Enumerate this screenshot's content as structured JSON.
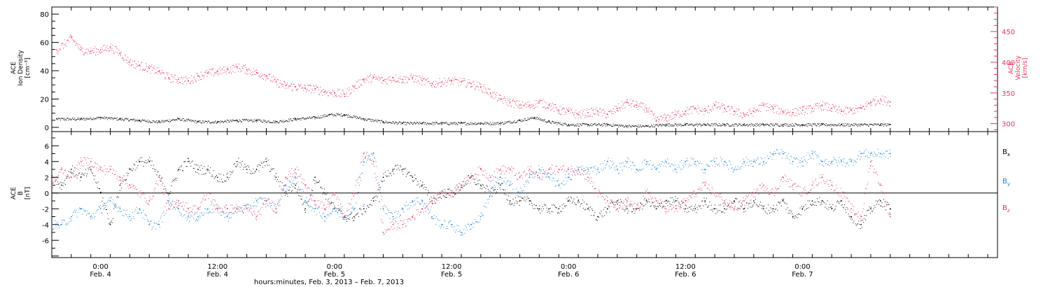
{
  "colors": {
    "black": "#000000",
    "pink": "#e8365e",
    "blue": "#1a7fd4"
  },
  "xaxis": {
    "title": "hours:minutes, Feb.  3, 2013 – Feb.  7, 2013",
    "range_hours": [
      -5,
      92
    ],
    "data_end_hours": 81,
    "ticks": [
      {
        "hours": 0,
        "time": "0:00",
        "day": "Feb. 4"
      },
      {
        "hours": 12,
        "time": "12:00",
        "day": "Feb. 4"
      },
      {
        "hours": 24,
        "time": "0:00",
        "day": "Feb. 5"
      },
      {
        "hours": 36,
        "time": "12:00",
        "day": "Feb. 5"
      },
      {
        "hours": 48,
        "time": "0:00",
        "day": "Feb. 6"
      },
      {
        "hours": 60,
        "time": "12:00",
        "day": "Feb. 6"
      },
      {
        "hours": 72,
        "time": "0:00",
        "day": "Feb. 7"
      }
    ]
  },
  "chart_data": [
    {
      "type": "scatter",
      "panel": "top",
      "left_axis": {
        "label_lines": [
          "ACE",
          "Ion Density",
          "[cm⁻³]"
        ],
        "ylim": [
          -3,
          85
        ],
        "ticks": [
          0,
          20,
          40,
          60,
          80
        ]
      },
      "right_axis": {
        "label_lines": [
          "ACE",
          "Velocity",
          "[km/s]"
        ],
        "ylim": [
          287,
          490
        ],
        "ticks": [
          300,
          350,
          400,
          450
        ],
        "color": "#e8365e"
      },
      "series": [
        {
          "color": "#000000",
          "axis": "left",
          "x": [
            -4.5,
            -2,
            0,
            2,
            4,
            6,
            8,
            10,
            12,
            14,
            16,
            18,
            20,
            22,
            23.5,
            25,
            27,
            29,
            31,
            33,
            35,
            37,
            39,
            41,
            43,
            44.5,
            46,
            48,
            50,
            52,
            54,
            56,
            58,
            60,
            62,
            64,
            66,
            68,
            70,
            72,
            74,
            76,
            78,
            80,
            81
          ],
          "y": [
            6,
            6,
            7,
            6,
            5,
            4,
            6,
            4,
            4,
            5,
            5,
            4,
            6,
            7,
            9,
            9,
            6,
            4,
            3,
            3,
            3,
            3,
            3,
            3,
            5,
            7,
            4,
            2,
            2,
            2,
            1,
            1,
            2,
            2,
            2,
            2,
            2,
            2,
            2,
            2,
            2,
            2,
            2,
            2,
            2
          ]
        },
        {
          "color": "#e8365e",
          "axis": "right",
          "x": [
            -4.5,
            -3,
            -2,
            -1,
            0,
            1,
            2,
            3,
            4,
            5,
            6,
            7,
            8,
            9,
            10,
            11,
            12,
            13,
            14,
            15,
            16,
            17,
            18,
            19,
            20,
            21,
            22,
            23,
            24,
            25,
            26,
            27,
            28,
            29,
            30,
            31,
            32,
            33,
            34,
            35,
            36,
            37,
            38,
            39,
            40,
            41,
            42,
            43,
            44,
            45,
            46,
            47,
            48,
            49,
            50,
            51,
            52,
            53,
            54,
            55,
            56,
            57,
            58,
            59,
            60,
            61,
            62,
            63,
            64,
            65,
            66,
            67,
            68,
            69,
            70,
            71,
            72,
            73,
            74,
            75,
            76,
            77,
            78,
            79,
            80,
            81
          ],
          "y": [
            420,
            440,
            420,
            418,
            420,
            425,
            415,
            400,
            395,
            390,
            385,
            375,
            372,
            370,
            378,
            382,
            385,
            388,
            392,
            388,
            383,
            378,
            368,
            362,
            360,
            358,
            357,
            352,
            350,
            348,
            360,
            372,
            375,
            370,
            375,
            372,
            375,
            370,
            365,
            368,
            370,
            368,
            365,
            360,
            350,
            340,
            335,
            330,
            330,
            335,
            330,
            322,
            320,
            315,
            318,
            320,
            315,
            325,
            335,
            330,
            325,
            305,
            310,
            315,
            320,
            325,
            320,
            330,
            325,
            320,
            315,
            320,
            330,
            325,
            320,
            318,
            322,
            325,
            330,
            325,
            320,
            322,
            325,
            335,
            340,
            335
          ]
        }
      ]
    },
    {
      "type": "scatter",
      "panel": "bottom",
      "left_axis": {
        "label_lines": [
          "ACE",
          "B",
          "[nT]"
        ],
        "ylim": [
          -8.2,
          7.8
        ],
        "ticks": [
          -6,
          -4,
          -2,
          0,
          2,
          4,
          6
        ]
      },
      "legend": [
        {
          "text": "B",
          "sub": "x",
          "color": "#000000"
        },
        {
          "text": "B",
          "sub": "y",
          "color": "#1a7fd4"
        },
        {
          "text": "B",
          "sub": "z",
          "color": "#e8365e"
        }
      ],
      "series": [
        {
          "name": "Bx",
          "color": "#000000",
          "x": [
            -5,
            -4,
            -3,
            -2,
            -1,
            0,
            1,
            2,
            3,
            4,
            5,
            6,
            7,
            8,
            9,
            10,
            11,
            12,
            13,
            14,
            15,
            16,
            17,
            18,
            19,
            20,
            21,
            22,
            23,
            24,
            25,
            26,
            27,
            28,
            29,
            30,
            31,
            32,
            33,
            34,
            35,
            36,
            37,
            38,
            39,
            40,
            41,
            42,
            43,
            44,
            45,
            46,
            47,
            48,
            49,
            50,
            51,
            52,
            53,
            54,
            55,
            56,
            57,
            58,
            59,
            60,
            61,
            62,
            63,
            64,
            65,
            66,
            67,
            68,
            69,
            70,
            71,
            72,
            73,
            74,
            75,
            76,
            77,
            78,
            79,
            80,
            81
          ],
          "y": [
            2,
            1,
            3,
            2,
            3,
            0,
            -4,
            1,
            3,
            4,
            4,
            2,
            0,
            3,
            4,
            3,
            3,
            2,
            2,
            4,
            3,
            3,
            4,
            2,
            0,
            1,
            -2,
            2,
            0,
            -2,
            -3,
            -3,
            -2,
            -1,
            2,
            3,
            3,
            2,
            1,
            -1,
            0,
            0,
            1,
            2,
            1,
            0,
            1,
            -1,
            -1,
            -1,
            -2,
            -2,
            -2,
            -1,
            -1,
            -2,
            -3,
            -2,
            -1,
            -2,
            -2,
            -1,
            -2,
            -1,
            -1,
            -2,
            -2,
            -1,
            -2,
            -2,
            -1,
            -2,
            -1,
            -2,
            -2,
            -1,
            -3,
            -2,
            -1,
            -1,
            -2,
            -1,
            -3,
            -4,
            -2,
            -1,
            -2
          ]
        },
        {
          "name": "By",
          "color": "#1a7fd4",
          "x": [
            -5,
            -4,
            -3,
            -2,
            -1,
            0,
            1,
            2,
            3,
            4,
            5,
            6,
            7,
            8,
            9,
            10,
            11,
            12,
            13,
            14,
            15,
            16,
            17,
            18,
            19,
            20,
            21,
            22,
            23,
            24,
            25,
            26,
            27,
            28,
            29,
            30,
            31,
            32,
            33,
            34,
            35,
            36,
            37,
            38,
            39,
            40,
            41,
            42,
            43,
            44,
            45,
            46,
            47,
            48,
            49,
            50,
            51,
            52,
            53,
            54,
            55,
            56,
            57,
            58,
            59,
            60,
            61,
            62,
            63,
            64,
            65,
            66,
            67,
            68,
            69,
            70,
            71,
            72,
            73,
            74,
            75,
            76,
            77,
            78,
            79,
            80,
            81
          ],
          "y": [
            -4,
            -4,
            -3,
            -2,
            -3,
            -2,
            -1,
            -2,
            -3,
            -2,
            -4,
            -4,
            -1,
            -2,
            -3,
            -3,
            -2,
            -2,
            -3,
            -2,
            -2,
            -1,
            -1,
            -2,
            1,
            2,
            -1,
            -2,
            -3,
            -2,
            -3,
            -2,
            4,
            5,
            -2,
            -3,
            -2,
            -1,
            -1,
            -3,
            -4,
            -4,
            -5,
            -4,
            -3,
            0,
            2,
            1,
            0,
            2,
            3,
            2,
            1,
            2,
            3,
            3,
            3,
            4,
            3,
            4,
            3,
            4,
            3,
            4,
            3,
            4,
            4,
            3,
            4,
            4,
            3,
            4,
            4,
            4,
            5,
            5,
            4,
            4,
            5,
            4,
            4,
            4,
            4,
            5,
            5,
            5,
            5
          ]
        },
        {
          "name": "Bz",
          "color": "#e8365e",
          "x": [
            -5,
            -4,
            -3,
            -2,
            -1,
            0,
            1,
            2,
            3,
            4,
            5,
            6,
            7,
            8,
            9,
            10,
            11,
            12,
            13,
            14,
            15,
            16,
            17,
            18,
            19,
            20,
            21,
            22,
            23,
            24,
            25,
            26,
            27,
            28,
            29,
            30,
            31,
            32,
            33,
            34,
            35,
            36,
            37,
            38,
            39,
            40,
            41,
            42,
            43,
            44,
            45,
            46,
            47,
            48,
            49,
            50,
            51,
            52,
            53,
            54,
            55,
            56,
            57,
            58,
            59,
            60,
            61,
            62,
            63,
            64,
            65,
            66,
            67,
            68,
            69,
            70,
            71,
            72,
            73,
            74,
            75,
            76,
            77,
            78,
            79,
            80,
            81
          ],
          "y": [
            1,
            3,
            2,
            4,
            4,
            3,
            3,
            2,
            1,
            0,
            -1,
            2,
            -2,
            -1,
            -2,
            -2,
            0,
            -2,
            -2,
            -2,
            -2,
            -3,
            -1,
            -2,
            2,
            3,
            1,
            -1,
            -2,
            0,
            -3,
            0,
            5,
            4,
            -5,
            -4,
            -4,
            -3,
            -2,
            -1,
            0,
            0,
            1,
            2,
            3,
            2,
            3,
            3,
            2,
            3,
            2,
            3,
            3,
            3,
            3,
            2,
            0,
            -1,
            -2,
            -1,
            -2,
            0,
            -1,
            -2,
            -2,
            -1,
            0,
            1,
            0,
            -1,
            -2,
            -1,
            0,
            1,
            0,
            2,
            1,
            0,
            1,
            2,
            1,
            0,
            -2,
            -3,
            4,
            1,
            -3
          ]
        }
      ]
    }
  ]
}
